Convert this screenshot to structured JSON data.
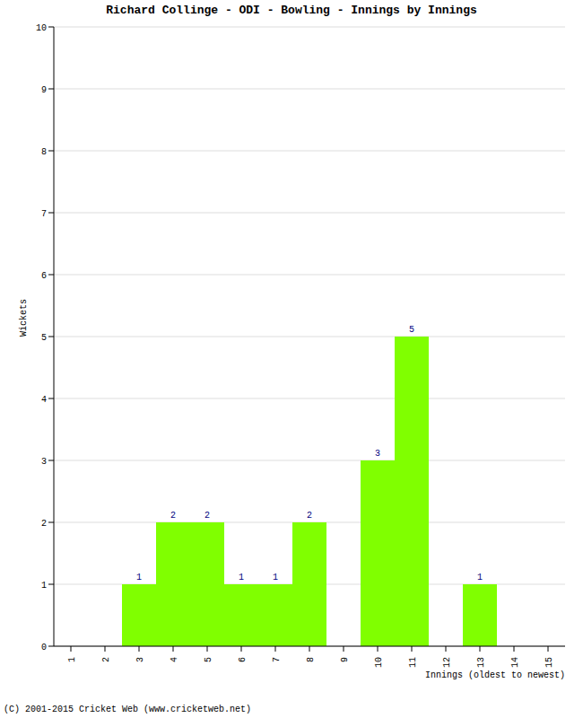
{
  "chart_data": {
    "type": "bar",
    "title": "Richard Collinge - ODI - Bowling - Innings by Innings",
    "x_label": "Innings (oldest to newest)",
    "y_label": "Wickets",
    "annotations": [
      "(C) 2001-2015 Cricket Web (www.cricketweb.net)"
    ],
    "categories": [
      "1",
      "2",
      "3",
      "4",
      "5",
      "6",
      "7",
      "8",
      "9",
      "10",
      "11",
      "12",
      "13",
      "14",
      "15"
    ],
    "values": [
      0,
      0,
      1,
      2,
      2,
      1,
      1,
      2,
      0,
      3,
      5,
      0,
      1,
      0,
      0
    ],
    "color": "#80ff00",
    "ylim": [
      0,
      10
    ],
    "yticks": [
      0,
      1,
      2,
      3,
      4,
      5,
      6,
      7,
      8,
      9,
      10
    ],
    "grid": true,
    "data_labels": true
  }
}
